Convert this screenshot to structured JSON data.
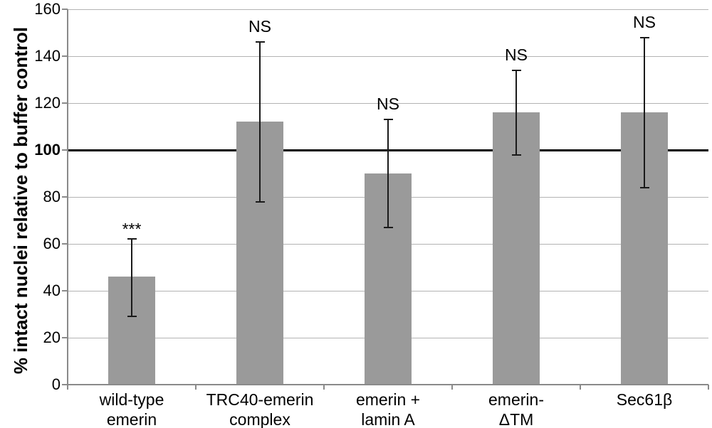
{
  "chart_data": {
    "type": "bar",
    "title": "",
    "xlabel": "",
    "ylabel": "% intact nuclei relative to buffer control",
    "ylim": [
      0,
      160
    ],
    "ytick_interval": 20,
    "reference_line": 100,
    "grid": true,
    "legend_position": "none",
    "categories": [
      "wild-type emerin",
      "TRC40-emerin complex",
      "emerin + lamin A",
      "emerin-ΔTM",
      "Sec61β"
    ],
    "category_lines": [
      [
        "wild-type",
        "emerin"
      ],
      [
        "TRC40-emerin",
        "complex"
      ],
      [
        "emerin +",
        "lamin A"
      ],
      [
        "emerin-",
        "ΔTM"
      ],
      [
        "Sec61β"
      ]
    ],
    "values": [
      46,
      112,
      90,
      116,
      116
    ],
    "error_low": [
      29,
      78,
      67,
      98,
      84
    ],
    "error_high": [
      62,
      146,
      113,
      134,
      148
    ],
    "significance": [
      "***",
      "NS",
      "NS",
      "NS",
      "NS"
    ],
    "colors": {
      "bar": "#9a9a9a",
      "grid": "#b3b3b3",
      "axis": "#8a8a8a",
      "reference": "#000000",
      "error": "#1a1a1a",
      "text": "#000000"
    }
  }
}
